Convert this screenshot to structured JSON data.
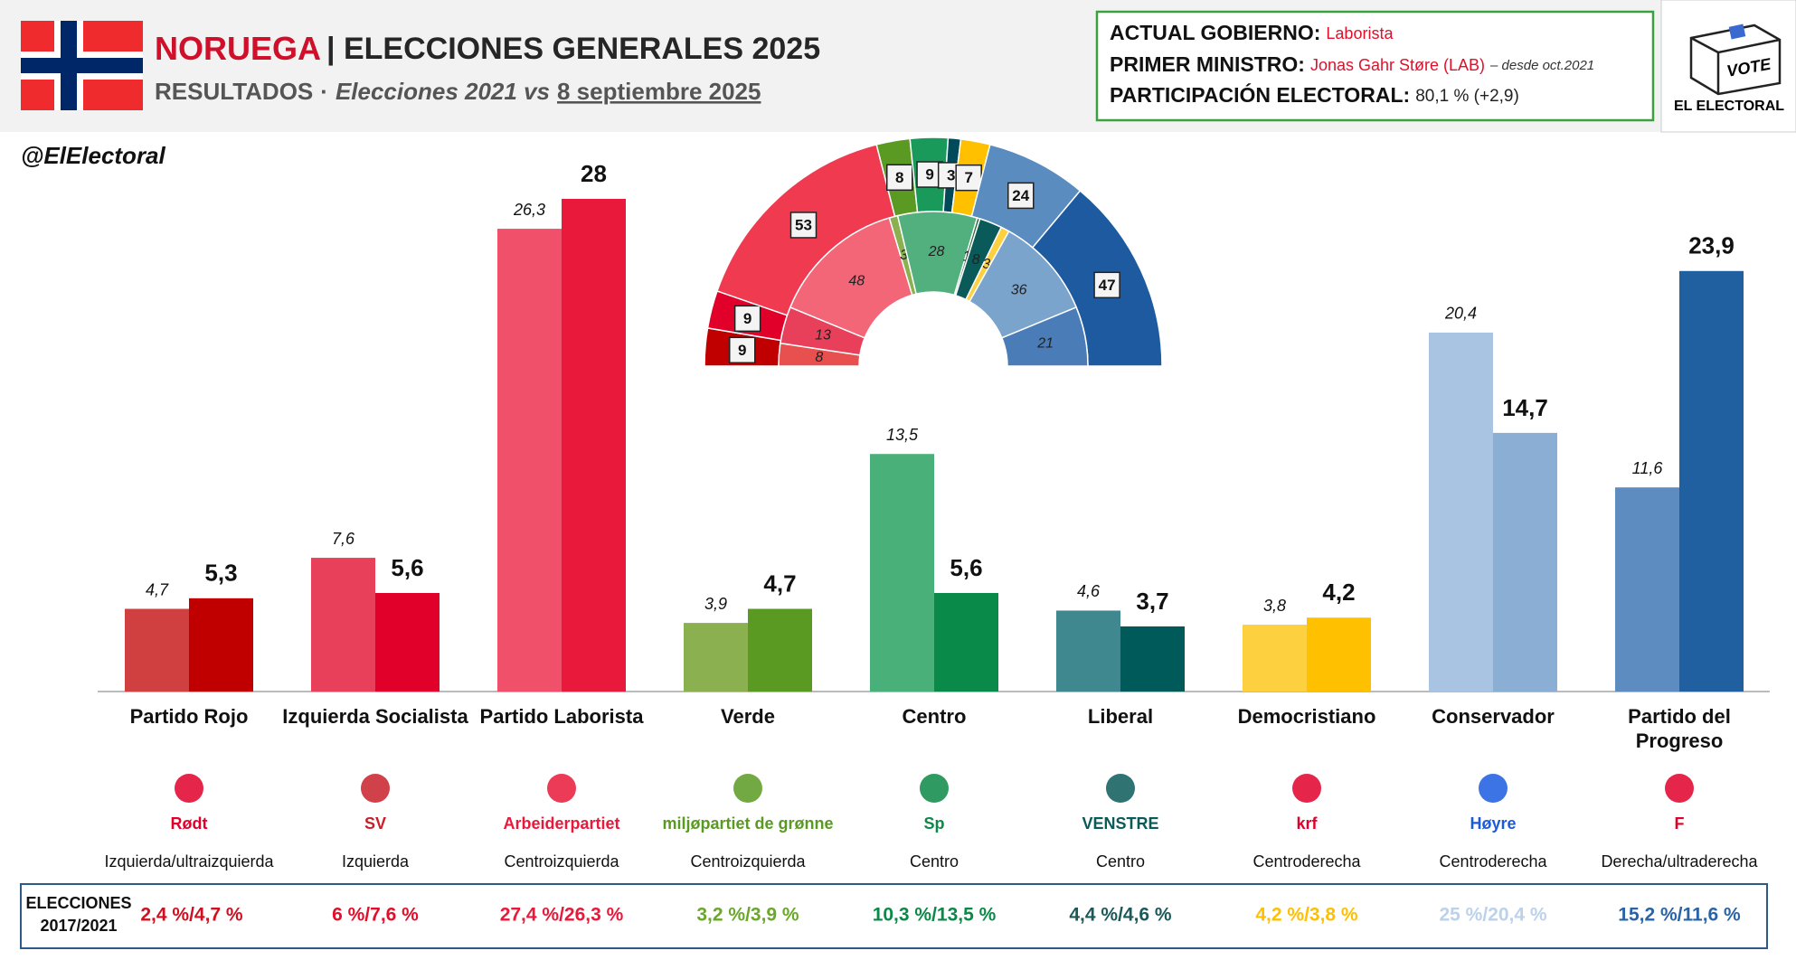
{
  "header": {
    "country": "NORUEGA",
    "title": "| ELECCIONES GENERALES 2025",
    "subtitle_a": "RESULTADOS",
    "subtitle_sep": "·",
    "subtitle_b": "Elecciones 2021 vs",
    "subtitle_c": "8 septiembre 2025"
  },
  "info": {
    "gov_label": "ACTUAL GOBIERNO:",
    "gov": "Laborista",
    "pm_label": "PRIMER MINISTRO:",
    "pm": "Jonas Gahr Støre (LAB)",
    "pm_note": "– desde oct.2021",
    "part_label": "PARTICIPACIÓN ELECTORAL:",
    "part": "80,1 % (+2,9)"
  },
  "brand": {
    "vote": "VOTE",
    "name": "EL ELECTORAL",
    "handle": "@ElElectoral"
  },
  "chart_data": [
    {
      "type": "bar",
      "categories": [
        "Partido Rojo",
        "Izquierda Socialista",
        "Partido Laborista",
        "Verde",
        "Centro",
        "Liberal",
        "Democristiano",
        "Conservador",
        "Partido del Progreso"
      ],
      "series": [
        {
          "values": [
            4.7,
            7.6,
            26.3,
            3.9,
            13.5,
            4.6,
            3.8,
            20.4,
            11.6
          ],
          "value_labels": [
            "4,7",
            "7,6",
            "26,3",
            "3,9",
            "13,5",
            "4,6",
            "3,8",
            "20,4",
            "11,6"
          ],
          "colors": [
            "#d04040",
            "#e8405a",
            "#f0506a",
            "#8ab050",
            "#48b078",
            "#408890",
            "#fdd040",
            "#a8c4e2",
            "#5c8cc0"
          ]
        },
        {
          "values": [
            5.3,
            5.6,
            28,
            4.7,
            5.6,
            3.7,
            4.2,
            14.7,
            23.9
          ],
          "value_labels": [
            "5,3",
            "5,6",
            "28",
            "4,7",
            "5,6",
            "3,7",
            "4,2",
            "14,7",
            "23,9"
          ],
          "colors": [
            "#c00000",
            "#e0002a",
            "#e8193a",
            "#5a9a22",
            "#0a8a48",
            "#005a5a",
            "#ffc000",
            "#8aaed4",
            "#2060a0"
          ]
        }
      ]
    },
    {
      "type": "semicircle",
      "rings": [
        {
          "values": [
            9,
            9,
            53,
            8,
            9,
            3,
            7,
            24,
            47
          ],
          "colors": [
            "#c00000",
            "#e0002a",
            "#ef3a50",
            "#5a9a22",
            "#1a9a5a",
            "#004a5a",
            "#ffc000",
            "#5a8cc0",
            "#1e5aa0"
          ]
        },
        {
          "values": [
            8,
            13,
            48,
            3,
            28,
            1,
            8,
            3,
            36,
            21
          ],
          "colors": [
            "#e85050",
            "#e8405a",
            "#f26678",
            "#8ab050",
            "#52b07e",
            "#2f6e3a",
            "#0a5a5a",
            "#fdd040",
            "#7aa4cc",
            "#4a7cb8"
          ]
        }
      ]
    }
  ],
  "parties": {
    "logos": [
      "Rødt",
      "SV",
      "Arbeiderpartiet",
      "miljøpartiet de grønne",
      "Sp",
      "VENSTRE",
      "krf",
      "Høyre",
      "F"
    ],
    "logo_colors": [
      "#e0002a",
      "#c8202a",
      "#e8193a",
      "#5a9a22",
      "#0a8a48",
      "#0a5a5a",
      "#e0002a",
      "#1a5ae0",
      "#e0002a"
    ],
    "ideology": [
      "Izquierda/ultraizquierda",
      "Izquierda",
      "Centroizquierda",
      "Centroizquierda",
      "Centro",
      "Centro",
      "Centroderecha",
      "Centroderecha",
      "Derecha/ultraderecha"
    ]
  },
  "previous": {
    "label": "ELECCIONES 2017/2021",
    "values": [
      "2,4 %/4,7 %",
      "6 %/7,6 %",
      "27,4 %/26,3 %",
      "3,2 %/3,9 %",
      "10,3 %/13,5 %",
      "4,4 %/4,6 %",
      "4,2 %/3,8 %",
      "25 %/20,4 %",
      "15,2 %/11,6 %"
    ],
    "colors": [
      "#d01020",
      "#e0102a",
      "#e8193a",
      "#6aa82a",
      "#0a8a48",
      "#1a5a5a",
      "#ffc000",
      "#bcd2ea",
      "#2a64a8"
    ]
  }
}
